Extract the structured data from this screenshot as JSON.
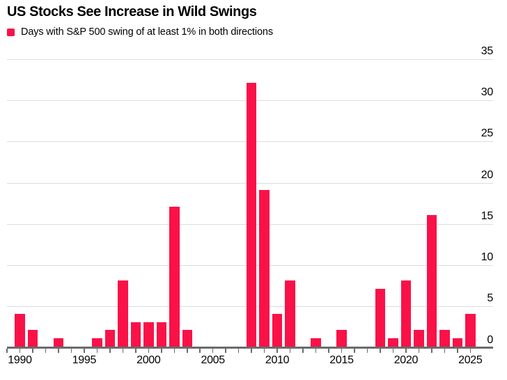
{
  "header": {
    "title": "US Stocks See Increase in Wild Swings"
  },
  "legend": {
    "label": "Days with S&P 500 swing of at least 1% in both directions"
  },
  "colors": {
    "bar": "#fa1148",
    "gridline": "#dcdcdc",
    "axis": "#6b6b6b",
    "text": "#000000",
    "background": "#ffffff"
  },
  "chart_data": {
    "type": "bar",
    "title": "US Stocks See Increase in Wild Swings",
    "series_label": "Days with S&P 500 swing of at least 1% in both directions",
    "x": [
      1990,
      1991,
      1992,
      1993,
      1994,
      1995,
      1996,
      1997,
      1998,
      1999,
      2000,
      2001,
      2002,
      2003,
      2004,
      2005,
      2006,
      2007,
      2008,
      2009,
      2010,
      2011,
      2012,
      2013,
      2014,
      2015,
      2016,
      2017,
      2018,
      2019,
      2020,
      2021,
      2022,
      2023,
      2024,
      2025
    ],
    "values": [
      4,
      2,
      0,
      1,
      0,
      0,
      1,
      2,
      8,
      3,
      3,
      3,
      17,
      2,
      0,
      0,
      0,
      0,
      32,
      19,
      4,
      8,
      0,
      1,
      0,
      2,
      0,
      0,
      7,
      1,
      8,
      2,
      16,
      2,
      1,
      4
    ],
    "xlabel": "",
    "ylabel": "",
    "ylim": [
      0,
      35
    ],
    "y_ticks": [
      0,
      5,
      10,
      15,
      20,
      25,
      30,
      35
    ],
    "x_tick_labels": [
      "1990",
      "1995",
      "2000",
      "2005",
      "2010",
      "2015",
      "2020",
      "2025"
    ],
    "axis_start_year": 1989,
    "grid": "horizontal",
    "y_axis_side": "right",
    "legend_position": "top-left"
  }
}
